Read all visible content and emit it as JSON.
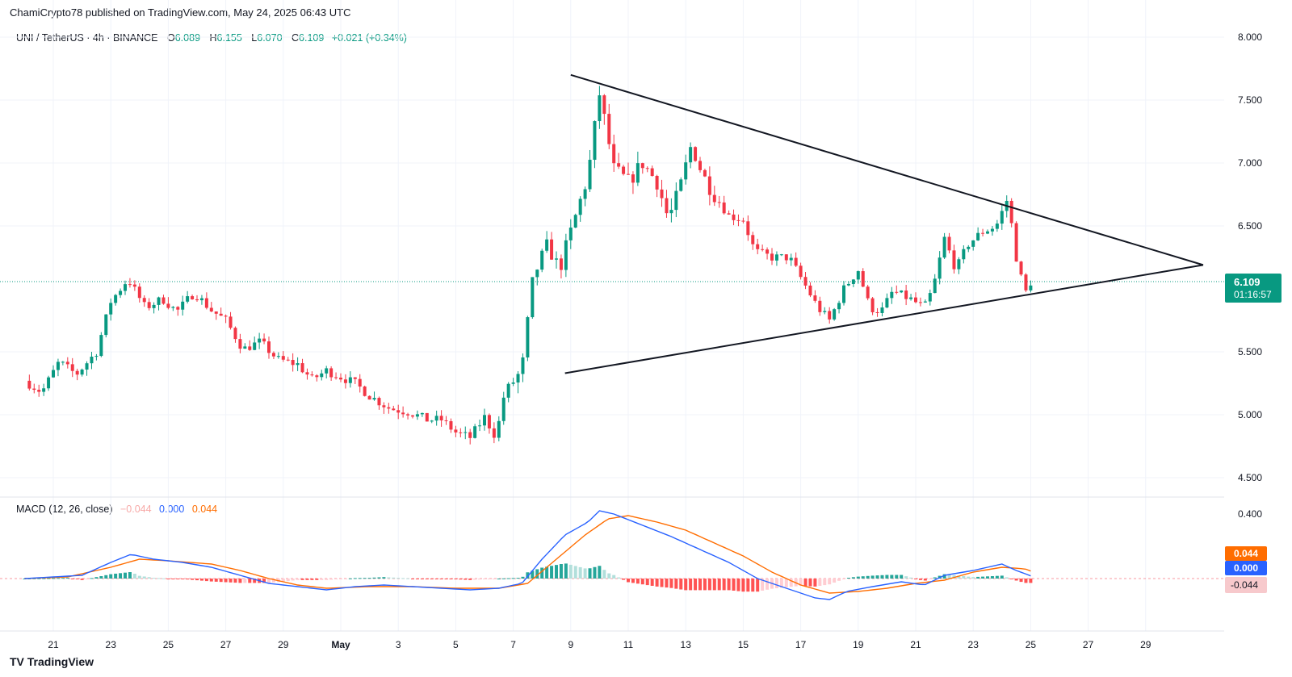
{
  "header": {
    "published": "ChamiCrypto78 published on TradingView.com, May 24, 2025 06:43 UTC"
  },
  "legend": {
    "symbol": "UNI / TetherUS · 4h · BINANCE",
    "o_label": "O",
    "o_value": "6.089",
    "h_label": "H",
    "h_value": "6.155",
    "l_label": "L",
    "l_value": "6.070",
    "c_label": "C",
    "c_value": "6.109",
    "change": "+0.021 (+0.34%)"
  },
  "price_tag": {
    "value": "6.109",
    "countdown": "01:16:57"
  },
  "macd_legend": {
    "name": "MACD (12, 26, close)",
    "hist": "−0.044",
    "macd": "0.000",
    "signal": "0.044"
  },
  "macd_tags": {
    "signal": "0.044",
    "macd": "0.000",
    "hist": "-0.044"
  },
  "brand": "TradingView",
  "colors": {
    "up": "#089981",
    "down": "#f23645",
    "macd": "#2962ff",
    "signal": "#ff6d00"
  },
  "chart_data": {
    "type": "candlestick",
    "price_axis": {
      "ticks": [
        "8.000",
        "7.500",
        "7.000",
        "6.500",
        "5.500",
        "5.000",
        "4.500"
      ],
      "range": [
        4.5,
        8.0
      ]
    },
    "time_axis": {
      "ticks": [
        "21",
        "23",
        "25",
        "27",
        "29",
        "May",
        "3",
        "5",
        "7",
        "9",
        "11",
        "13",
        "15",
        "17",
        "19",
        "21",
        "23",
        "25",
        "27",
        "29"
      ]
    },
    "last_price": 6.109,
    "price_anchors": [
      [
        20.0,
        5.27
      ],
      [
        20.6,
        5.18
      ],
      [
        21.2,
        5.42
      ],
      [
        21.8,
        5.32
      ],
      [
        22.5,
        5.5
      ],
      [
        23.0,
        5.9
      ],
      [
        23.6,
        6.08
      ],
      [
        24.2,
        5.85
      ],
      [
        24.8,
        5.92
      ],
      [
        25.3,
        5.82
      ],
      [
        25.9,
        5.97
      ],
      [
        26.5,
        5.83
      ],
      [
        27.0,
        5.75
      ],
      [
        27.6,
        5.52
      ],
      [
        28.2,
        5.58
      ],
      [
        28.8,
        5.44
      ],
      [
        29.5,
        5.4
      ],
      [
        30.0,
        5.28
      ],
      [
        30.5,
        5.35
      ],
      [
        31.0,
        5.3
      ],
      [
        31.5,
        5.25
      ],
      [
        32.0,
        5.15
      ],
      [
        32.7,
        5.05
      ],
      [
        33.4,
        5.02
      ],
      [
        34.0,
        4.96
      ],
      [
        34.5,
        4.96
      ],
      [
        35.0,
        4.86
      ],
      [
        35.5,
        4.82
      ],
      [
        36.0,
        4.98
      ],
      [
        36.4,
        4.82
      ],
      [
        36.7,
        5.18
      ],
      [
        37.3,
        5.35
      ],
      [
        37.7,
        6.1
      ],
      [
        38.2,
        6.35
      ],
      [
        38.6,
        6.15
      ],
      [
        39.0,
        6.45
      ],
      [
        39.6,
        6.9
      ],
      [
        40.0,
        7.55
      ],
      [
        40.5,
        6.95
      ],
      [
        41.0,
        6.85
      ],
      [
        41.5,
        7.0
      ],
      [
        42.0,
        6.85
      ],
      [
        42.4,
        6.55
      ],
      [
        42.8,
        6.8
      ],
      [
        43.2,
        7.15
      ],
      [
        43.6,
        6.9
      ],
      [
        44.0,
        6.75
      ],
      [
        44.5,
        6.58
      ],
      [
        45.0,
        6.55
      ],
      [
        45.4,
        6.3
      ],
      [
        46.0,
        6.25
      ],
      [
        46.6,
        6.25
      ],
      [
        47.1,
        6.05
      ],
      [
        47.6,
        5.85
      ],
      [
        48.0,
        5.75
      ],
      [
        48.5,
        6.0
      ],
      [
        49.0,
        6.15
      ],
      [
        49.4,
        5.85
      ],
      [
        49.8,
        5.82
      ],
      [
        50.2,
        5.98
      ],
      [
        50.8,
        5.92
      ],
      [
        51.3,
        5.85
      ],
      [
        51.6,
        6.0
      ],
      [
        52.0,
        6.4
      ],
      [
        52.4,
        6.15
      ],
      [
        52.8,
        6.35
      ],
      [
        53.3,
        6.45
      ],
      [
        53.8,
        6.5
      ],
      [
        54.2,
        6.72
      ],
      [
        54.5,
        6.25
      ],
      [
        54.8,
        5.96
      ],
      [
        55.1,
        6.1
      ]
    ],
    "upper_trendline": {
      "from": {
        "date": "May 9",
        "price": 7.7
      },
      "to": {
        "date": "May 31",
        "price": 6.19
      }
    },
    "lower_trendline": {
      "from": {
        "date": "May 8.8",
        "price": 5.33
      },
      "to": {
        "date": "May 31",
        "price": 6.19
      }
    },
    "macd_axis": {
      "ticks": [
        "0.400"
      ],
      "range": [
        -0.15,
        0.45
      ]
    },
    "macd_anchors": [
      [
        20.0,
        0.0
      ],
      [
        21.0,
        0.01
      ],
      [
        22.0,
        0.02
      ],
      [
        23.0,
        0.1
      ],
      [
        23.7,
        0.15
      ],
      [
        24.5,
        0.12
      ],
      [
        25.5,
        0.1
      ],
      [
        26.5,
        0.07
      ],
      [
        27.5,
        0.02
      ],
      [
        28.5,
        -0.03
      ],
      [
        29.5,
        -0.05
      ],
      [
        30.5,
        -0.07
      ],
      [
        31.5,
        -0.05
      ],
      [
        32.5,
        -0.04
      ],
      [
        33.5,
        -0.05
      ],
      [
        34.5,
        -0.06
      ],
      [
        35.5,
        -0.07
      ],
      [
        36.5,
        -0.06
      ],
      [
        37.3,
        -0.03
      ],
      [
        38.0,
        0.12
      ],
      [
        38.8,
        0.27
      ],
      [
        39.6,
        0.35
      ],
      [
        40.0,
        0.42
      ],
      [
        40.5,
        0.4
      ],
      [
        41.5,
        0.33
      ],
      [
        42.5,
        0.26
      ],
      [
        43.5,
        0.18
      ],
      [
        44.5,
        0.1
      ],
      [
        45.5,
        0.0
      ],
      [
        46.5,
        -0.06
      ],
      [
        47.5,
        -0.12
      ],
      [
        48.0,
        -0.13
      ],
      [
        48.6,
        -0.08
      ],
      [
        49.5,
        -0.05
      ],
      [
        50.5,
        -0.02
      ],
      [
        51.3,
        -0.04
      ],
      [
        52.0,
        0.02
      ],
      [
        53.0,
        0.05
      ],
      [
        54.0,
        0.09
      ],
      [
        54.5,
        0.05
      ],
      [
        55.1,
        0.01
      ]
    ],
    "signal_anchors": [
      [
        20.0,
        0.0
      ],
      [
        21.5,
        0.01
      ],
      [
        23.0,
        0.07
      ],
      [
        24.0,
        0.12
      ],
      [
        25.0,
        0.11
      ],
      [
        26.5,
        0.09
      ],
      [
        27.5,
        0.05
      ],
      [
        28.5,
        0.0
      ],
      [
        29.5,
        -0.04
      ],
      [
        30.5,
        -0.06
      ],
      [
        32.0,
        -0.05
      ],
      [
        33.5,
        -0.05
      ],
      [
        35.0,
        -0.06
      ],
      [
        36.5,
        -0.06
      ],
      [
        37.5,
        -0.03
      ],
      [
        38.5,
        0.12
      ],
      [
        39.5,
        0.27
      ],
      [
        40.3,
        0.37
      ],
      [
        41.0,
        0.39
      ],
      [
        42.0,
        0.35
      ],
      [
        43.0,
        0.3
      ],
      [
        44.0,
        0.22
      ],
      [
        45.0,
        0.14
      ],
      [
        46.0,
        0.04
      ],
      [
        47.0,
        -0.04
      ],
      [
        48.0,
        -0.09
      ],
      [
        49.0,
        -0.08
      ],
      [
        50.0,
        -0.06
      ],
      [
        51.0,
        -0.03
      ],
      [
        52.0,
        -0.01
      ],
      [
        53.0,
        0.04
      ],
      [
        54.0,
        0.07
      ],
      [
        54.8,
        0.06
      ],
      [
        55.1,
        0.04
      ]
    ]
  }
}
